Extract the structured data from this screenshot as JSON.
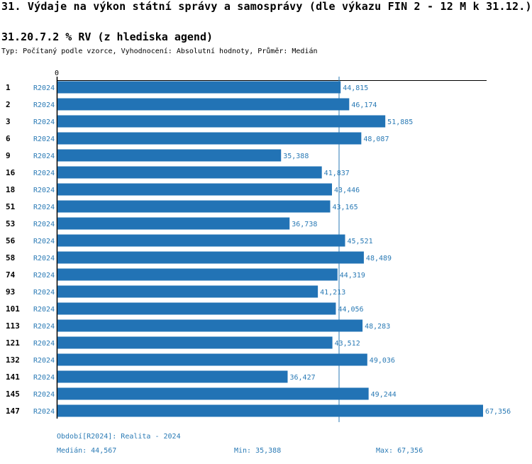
{
  "header": {
    "title": "31. Výdaje na výkon státní správy a samosprávy (dle výkazu FIN 2 - 12 M k 31.12.)",
    "subtitle": "31.20.7.2 % RV (z hlediska agend)",
    "typ": "Typ: Počítaný podle vzorce, Vyhodnocení: Absolutní hodnoty, Průměr: Medián"
  },
  "colors": {
    "bar": "#2273b5",
    "accent_text": "#2a7ab5",
    "axis": "#000000"
  },
  "chart_data": {
    "type": "bar",
    "orientation": "horizontal",
    "x_axis_zero_label": "0",
    "xlim": [
      0,
      67356
    ],
    "reference_line": {
      "name": "Medián",
      "value": 44567
    },
    "categories": [
      "1",
      "2",
      "3",
      "6",
      "9",
      "16",
      "18",
      "51",
      "53",
      "56",
      "58",
      "74",
      "93",
      "101",
      "113",
      "121",
      "132",
      "141",
      "145",
      "147"
    ],
    "series": [
      {
        "name": "R2024",
        "values": [
          44815,
          46174,
          51885,
          48087,
          35388,
          41837,
          43446,
          43165,
          36738,
          45521,
          48489,
          44319,
          41213,
          44056,
          48283,
          43512,
          49036,
          36427,
          49244,
          67356
        ],
        "value_labels": [
          "44,815",
          "46,174",
          "51,885",
          "48,087",
          "35,388",
          "41,837",
          "43,446",
          "43,165",
          "36,738",
          "45,521",
          "48,489",
          "44,319",
          "41,213",
          "44,056",
          "48,283",
          "43,512",
          "49,036",
          "36,427",
          "49,244",
          "67,356"
        ]
      }
    ]
  },
  "footer": {
    "period": "Období[R2024]: Realita - 2024",
    "median": "Medián: 44,567",
    "min": "Min: 35,388",
    "max": "Max: 67,356"
  }
}
